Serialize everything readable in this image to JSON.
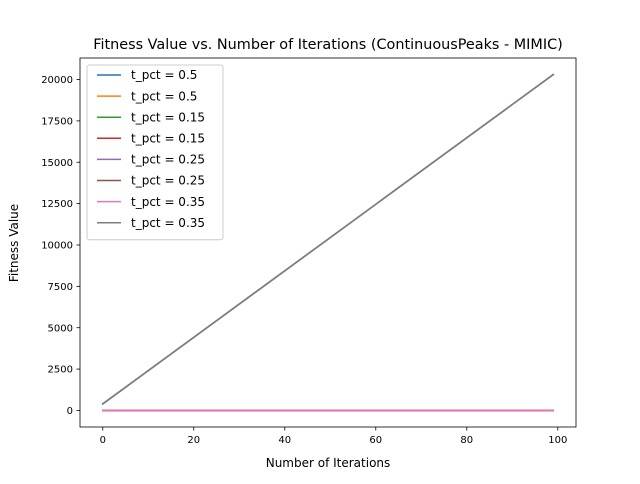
{
  "chart_data": {
    "type": "line",
    "title": "Fitness Value vs. Number of Iterations (ContinuousPeaks - MIMIC)",
    "xlabel": "Number of Iterations",
    "ylabel": "Fitness Value",
    "xlim": [
      -5,
      104
    ],
    "ylim": [
      -1000,
      21300
    ],
    "x_ticks": [
      0,
      20,
      40,
      60,
      80,
      100
    ],
    "y_ticks": [
      0,
      2500,
      5000,
      7500,
      10000,
      12500,
      15000,
      17500,
      20000
    ],
    "grid": false,
    "legend_position": "upper-left",
    "x_range": [
      0,
      99
    ],
    "series": [
      {
        "name": "t_pct = 0.5",
        "color": "#1f77b4",
        "start": 396,
        "end": 20300
      },
      {
        "name": "t_pct = 0.5",
        "color": "#ff7f0e",
        "start": 0,
        "end": 0
      },
      {
        "name": "t_pct = 0.15",
        "color": "#2ca02c",
        "start": 396,
        "end": 20300
      },
      {
        "name": "t_pct = 0.15",
        "color": "#d62728",
        "start": 0,
        "end": 0
      },
      {
        "name": "t_pct = 0.25",
        "color": "#9467bd",
        "start": 396,
        "end": 20300
      },
      {
        "name": "t_pct = 0.25",
        "color": "#8c564b",
        "start": 0,
        "end": 0
      },
      {
        "name": "t_pct = 0.35",
        "color": "#e377c2",
        "start": 0,
        "end": 0
      },
      {
        "name": "t_pct = 0.35",
        "color": "#7f7f7f",
        "start": 396,
        "end": 20300
      }
    ],
    "draw_order": [
      1,
      3,
      5,
      0,
      2,
      4,
      7,
      6
    ]
  }
}
